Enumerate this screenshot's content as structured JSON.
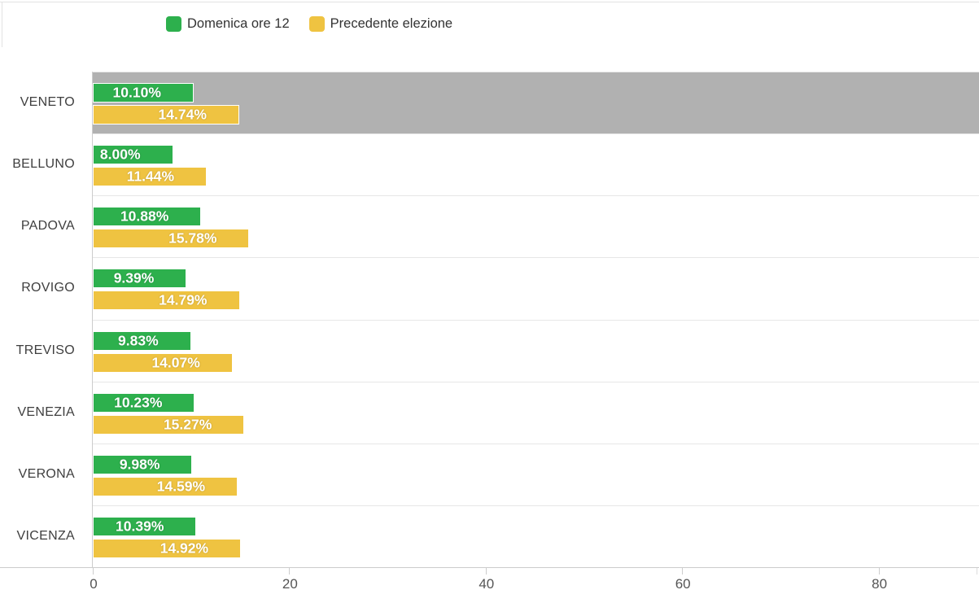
{
  "chart_data": {
    "type": "bar",
    "orientation": "horizontal",
    "title": "",
    "xlabel": "",
    "ylabel": "",
    "categories": [
      "VENETO",
      "BELLUNO",
      "PADOVA",
      "ROVIGO",
      "TREVISO",
      "VENEZIA",
      "VERONA",
      "VICENZA"
    ],
    "series": [
      {
        "name": "Domenica ore 12",
        "color": "#2DB04D",
        "values": [
          10.1,
          8.0,
          10.88,
          9.39,
          9.83,
          10.23,
          9.98,
          10.39
        ],
        "labels": [
          "10.10%",
          "8.00%",
          "10.88%",
          "9.39%",
          "9.83%",
          "10.23%",
          "9.98%",
          "10.39%"
        ]
      },
      {
        "name": "Precedente elezione",
        "color": "#EFC341",
        "values": [
          14.74,
          11.44,
          15.78,
          14.79,
          14.07,
          15.27,
          14.59,
          14.92
        ],
        "labels": [
          "14.74%",
          "11.44%",
          "15.78%",
          "14.79%",
          "14.07%",
          "15.27%",
          "14.59%",
          "14.92%"
        ]
      }
    ],
    "x_axis": {
      "ticks": [
        0,
        20,
        40,
        60,
        80
      ],
      "min": 0,
      "max": 90
    },
    "grid": false,
    "legend_position": "top",
    "highlight": {
      "category": "VENETO",
      "color": "#B1B1B1"
    }
  },
  "colors": {
    "background": "#FFFFFF",
    "highlight_band": "#B1B1B1",
    "row_separator": "#E7E7E7",
    "axis_line": "#CCCCCC",
    "tick_text": "#555555",
    "category_text": "#3F3F3F",
    "legend_text": "#333333",
    "bar_label_text": "#FFFFFF"
  }
}
